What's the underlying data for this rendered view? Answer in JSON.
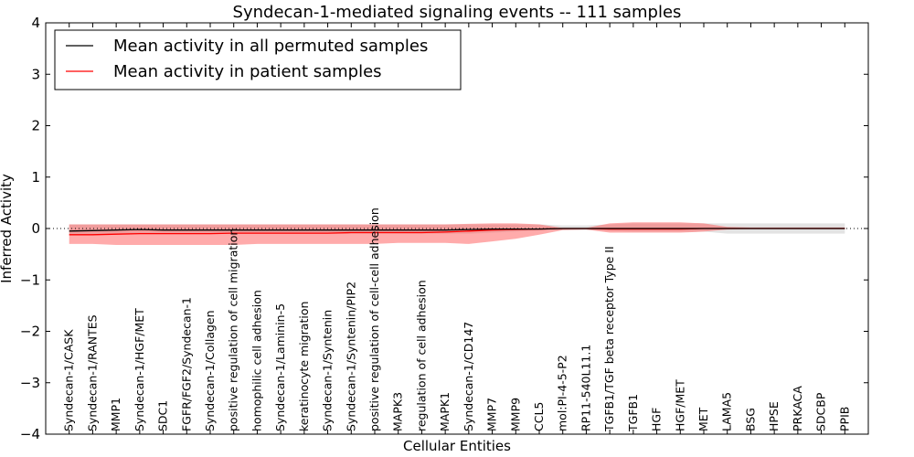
{
  "chart_data": {
    "type": "line",
    "title": "Syndecan-1-mediated signaling events -- 111 samples",
    "xlabel": "Cellular Entities",
    "ylabel": "Inferred Activity",
    "ylim": [
      -4,
      4
    ],
    "yticks": [
      -4,
      -3,
      -2,
      -1,
      0,
      1,
      2,
      3,
      4
    ],
    "grid": false,
    "legend_position": "top-left",
    "categories": [
      "Syndecan-1/CASK",
      "Syndecan-1/RANTES",
      "MMP1",
      "Syndecan-1/HGF/MET",
      "SDC1",
      "FGFR/FGF2/Syndecan-1",
      "Syndecan-1/Collagen",
      "positive regulation of cell migration",
      "homophilic cell adhesion",
      "Syndecan-1/Laminin-5",
      "keratinocyte migration",
      "Syndecan-1/Syntenin",
      "Syndecan-1/Syntenin/PIP2",
      "positive regulation of cell-cell adhesion",
      "MAPK3",
      "regulation of cell adhesion",
      "MAPK1",
      "Syndecan-1/CD147",
      "MMP7",
      "MMP9",
      "CCL5",
      "mol:PI-4-5-P2",
      "RP11-540L11.1",
      "TGFB1/TGF beta receptor Type II",
      "TGFB1",
      "HGF",
      "HGF/MET",
      "MET",
      "LAMA5",
      "BSG",
      "HPSE",
      "PRKACA",
      "SDCBP",
      "PPIB"
    ],
    "series": [
      {
        "name": "Mean activity in all permuted samples",
        "color": "#000000",
        "values": [
          -0.05,
          -0.04,
          -0.03,
          -0.02,
          -0.03,
          -0.03,
          -0.03,
          -0.03,
          -0.03,
          -0.03,
          -0.03,
          -0.03,
          -0.03,
          -0.03,
          -0.03,
          -0.03,
          -0.03,
          -0.02,
          -0.01,
          -0.01,
          -0.01,
          0.0,
          0.0,
          0.0,
          0.0,
          0.0,
          0.0,
          0.0,
          0.0,
          0.0,
          0.0,
          0.0,
          0.0,
          0.0
        ],
        "band_lower": [
          -0.12,
          -0.12,
          -0.1,
          -0.1,
          -0.1,
          -0.1,
          -0.1,
          -0.1,
          -0.1,
          -0.1,
          -0.1,
          -0.1,
          -0.1,
          -0.1,
          -0.1,
          -0.1,
          -0.1,
          -0.1,
          -0.08,
          -0.06,
          -0.04,
          -0.03,
          -0.03,
          -0.05,
          -0.06,
          -0.06,
          -0.06,
          -0.06,
          -0.1,
          -0.1,
          -0.1,
          -0.1,
          -0.1,
          -0.1
        ],
        "band_upper": [
          0.08,
          0.08,
          0.08,
          0.08,
          0.08,
          0.08,
          0.08,
          0.08,
          0.08,
          0.08,
          0.08,
          0.08,
          0.08,
          0.08,
          0.08,
          0.08,
          0.08,
          0.08,
          0.08,
          0.08,
          0.08,
          0.06,
          0.06,
          0.08,
          0.1,
          0.1,
          0.1,
          0.1,
          0.1,
          0.1,
          0.1,
          0.1,
          0.1,
          0.1
        ]
      },
      {
        "name": "Mean activity in patient samples",
        "color": "#ff0000",
        "values": [
          -0.12,
          -0.12,
          -0.11,
          -0.1,
          -0.1,
          -0.1,
          -0.1,
          -0.09,
          -0.09,
          -0.09,
          -0.09,
          -0.09,
          -0.08,
          -0.08,
          -0.08,
          -0.08,
          -0.07,
          -0.05,
          -0.03,
          -0.02,
          -0.01,
          0.0,
          0.0,
          -0.01,
          -0.01,
          -0.01,
          -0.01,
          0.0,
          0.0,
          0.0,
          0.0,
          0.0,
          0.0,
          0.0
        ],
        "band_lower": [
          -0.3,
          -0.3,
          -0.32,
          -0.32,
          -0.32,
          -0.32,
          -0.32,
          -0.32,
          -0.3,
          -0.3,
          -0.3,
          -0.3,
          -0.3,
          -0.3,
          -0.28,
          -0.28,
          -0.28,
          -0.3,
          -0.25,
          -0.2,
          -0.12,
          -0.03,
          -0.02,
          -0.08,
          -0.08,
          -0.08,
          -0.08,
          -0.06,
          -0.02,
          -0.01,
          -0.01,
          -0.01,
          -0.01,
          -0.01
        ],
        "band_upper": [
          0.08,
          0.08,
          0.08,
          0.08,
          0.08,
          0.08,
          0.08,
          0.08,
          0.08,
          0.08,
          0.08,
          0.08,
          0.08,
          0.08,
          0.08,
          0.08,
          0.08,
          0.09,
          0.1,
          0.1,
          0.08,
          0.01,
          0.01,
          0.1,
          0.12,
          0.12,
          0.12,
          0.1,
          0.03,
          0.02,
          0.02,
          0.02,
          0.02,
          0.02
        ]
      }
    ],
    "permuted_band_color": "#cccccc",
    "patient_band_color": "#ff4444"
  }
}
